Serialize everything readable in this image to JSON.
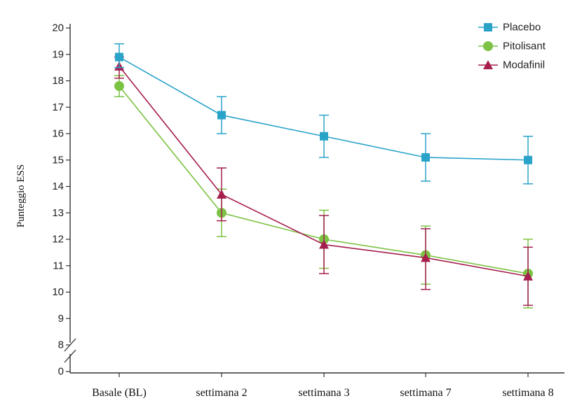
{
  "chart_data": {
    "type": "line",
    "title": "",
    "xlabel": "",
    "ylabel": "Punteggio ESS",
    "categories": [
      "Basale (BL)",
      "settimana 2",
      "settimana 3",
      "settimana 7",
      "settimana 8"
    ],
    "y_ticks": [
      "20",
      "19",
      "18",
      "17",
      "16",
      "15",
      "14",
      "13",
      "12",
      "11",
      "10",
      "9",
      "8",
      "0"
    ],
    "ylim": [
      8,
      20
    ],
    "axis_break": true,
    "legend_position": "top-right",
    "grid": false,
    "series": [
      {
        "name": "Placebo",
        "color": "#2aa3c9",
        "marker": "square",
        "values": [
          18.9,
          16.7,
          15.9,
          15.1,
          15.0
        ],
        "err_low": [
          18.5,
          16.0,
          15.1,
          14.2,
          14.1
        ],
        "err_high": [
          19.4,
          17.4,
          16.7,
          16.0,
          15.9
        ]
      },
      {
        "name": "Pitolisant",
        "color": "#7cc243",
        "marker": "circle",
        "values": [
          17.8,
          13.0,
          12.0,
          11.4,
          10.7
        ],
        "err_low": [
          17.4,
          12.1,
          10.9,
          10.3,
          9.4
        ],
        "err_high": [
          18.2,
          13.9,
          13.1,
          12.5,
          12.0
        ]
      },
      {
        "name": "Modafinil",
        "color": "#a51e4e",
        "marker": "triangle",
        "values": [
          18.55,
          13.7,
          11.8,
          11.3,
          10.6
        ],
        "err_low": [
          18.1,
          12.7,
          10.7,
          10.1,
          9.5
        ],
        "err_high": [
          18.9,
          14.7,
          12.9,
          12.4,
          11.7
        ]
      }
    ]
  }
}
